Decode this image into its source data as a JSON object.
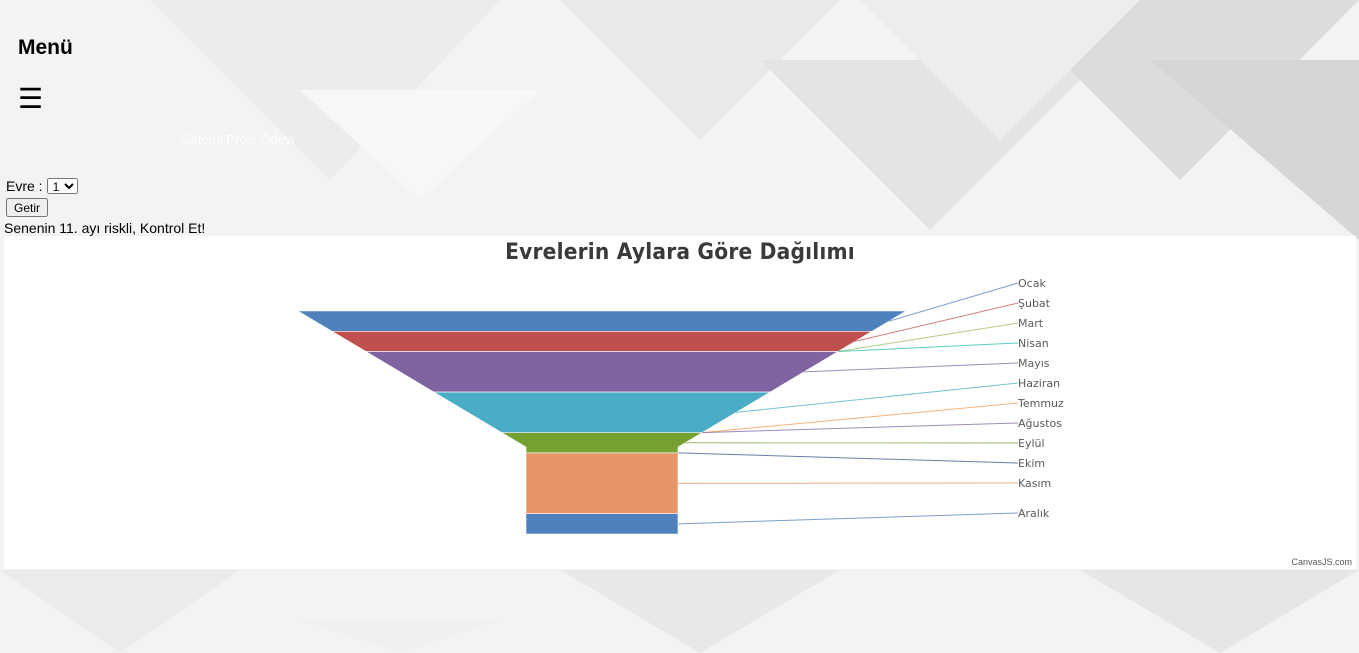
{
  "menu": {
    "title": "Menü",
    "hamburger_icon": "hamburger-icon",
    "hamburger_glyph": "☰"
  },
  "subtitle_text": "Sistemi Proje Ödevi",
  "form": {
    "evre_label": "Evre :",
    "evre_selected": "1",
    "submit_label": "Getir"
  },
  "warning": "Senenin 11. ayı riskli, Kontrol Et!",
  "credit": "CanvasJS.com",
  "chart_data": {
    "type": "funnel",
    "title": "Evrelerin Aylara Göre Dağılımı",
    "legend_placement": "right",
    "segments": [
      {
        "label": "Ocak",
        "value": 10,
        "color": "#4f81bc"
      },
      {
        "label": "Şubat",
        "value": 10,
        "color": "#c0504e"
      },
      {
        "label": "Mart",
        "value": 0,
        "color": "#9bbb58"
      },
      {
        "label": "Nisan",
        "value": 0,
        "color": "#23bfaa"
      },
      {
        "label": "Mayıs",
        "value": 20,
        "color": "#8064a1"
      },
      {
        "label": "Haziran",
        "value": 20,
        "color": "#4aacc5"
      },
      {
        "label": "Temmuz",
        "value": 0,
        "color": "#f79647"
      },
      {
        "label": "Ağustos",
        "value": 0,
        "color": "#8064a1"
      },
      {
        "label": "Eylül",
        "value": 10,
        "color": "#77a033"
      },
      {
        "label": "Ekim",
        "value": 0,
        "color": "#33558b"
      },
      {
        "label": "Kasım",
        "value": 30,
        "color": "#e59566"
      },
      {
        "label": "Aralık",
        "value": 10,
        "color": "#4f81bc"
      }
    ]
  }
}
